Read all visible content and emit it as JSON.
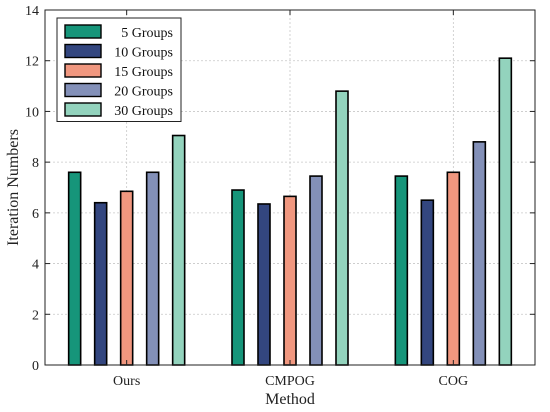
{
  "chart_data": {
    "type": "bar",
    "title": "",
    "xlabel": "Method",
    "ylabel": "Iteration Numbers",
    "categories": [
      "Ours",
      "CMPOG",
      "COG"
    ],
    "ylim": [
      0,
      14
    ],
    "yticks": [
      0,
      2,
      4,
      6,
      8,
      10,
      12,
      14
    ],
    "grid": true,
    "legend_position": "top-left",
    "series": [
      {
        "name": "5 Groups",
        "color": "#16957a",
        "values": [
          7.6,
          6.9,
          7.45
        ]
      },
      {
        "name": "10 Groups",
        "color": "#33467f",
        "values": [
          6.4,
          6.35,
          6.5
        ]
      },
      {
        "name": "15 Groups",
        "color": "#f0977f",
        "values": [
          6.85,
          6.65,
          7.6
        ]
      },
      {
        "name": "20 Groups",
        "color": "#8390b8",
        "values": [
          7.6,
          7.45,
          8.8
        ]
      },
      {
        "name": "30 Groups",
        "color": "#93d3bd",
        "values": [
          9.05,
          10.8,
          12.1
        ]
      }
    ]
  }
}
